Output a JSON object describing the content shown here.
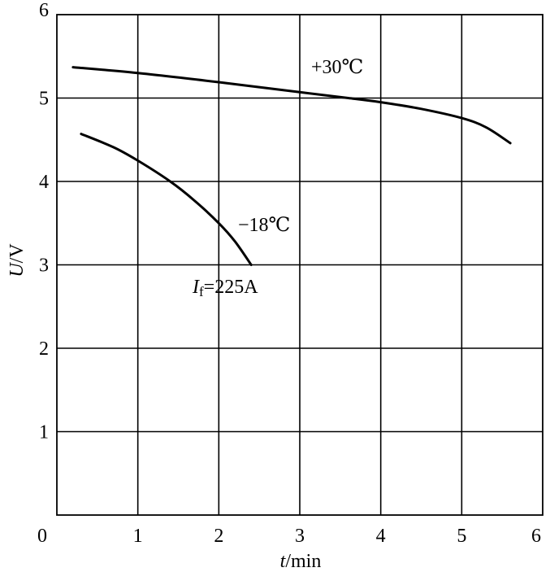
{
  "chart_data": {
    "type": "line",
    "xlabel": {
      "var": "t",
      "unit": "/min"
    },
    "ylabel": {
      "var": "U",
      "unit": "/V"
    },
    "xlim": [
      0,
      6
    ],
    "ylim": [
      0,
      6
    ],
    "xticks": [
      "0",
      "1",
      "2",
      "3",
      "4",
      "5",
      "6"
    ],
    "yticks": [
      "1",
      "2",
      "3",
      "4",
      "5",
      "6"
    ],
    "grid": true,
    "series": [
      {
        "name": "+30℃",
        "x": [
          0.2,
          1.0,
          2.0,
          3.0,
          3.6,
          4.0,
          4.5,
          5.0,
          5.3,
          5.6
        ],
        "y": [
          5.37,
          5.3,
          5.19,
          5.07,
          5.0,
          4.95,
          4.87,
          4.76,
          4.65,
          4.46
        ]
      },
      {
        "name": "−18℃",
        "x": [
          0.3,
          0.7,
          1.0,
          1.4,
          1.7,
          2.0,
          2.2,
          2.4
        ],
        "y": [
          4.57,
          4.41,
          4.25,
          4.0,
          3.77,
          3.5,
          3.28,
          3.0
        ]
      }
    ],
    "annotation": {
      "symbol": "I",
      "sub": "f",
      "value": "=225A"
    }
  }
}
